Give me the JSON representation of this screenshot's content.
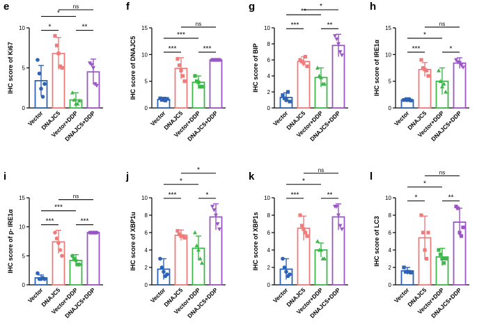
{
  "colors": {
    "Vector": "#2d62b4",
    "DNAJC5": "#f07b7b",
    "Vector+DDP": "#3cb84a",
    "DNAJC5+DDP": "#9a56c4"
  },
  "chart_data": [
    {
      "panel": "e",
      "type": "bar",
      "ylabel": "IHC score of Ki67",
      "ylim": [
        0,
        10
      ],
      "yticks": [
        0,
        5,
        10
      ],
      "categories": [
        "Vector",
        "DNAJC5",
        "Vector+DDP",
        "DNAJC5+DDP"
      ],
      "marker": [
        "circle",
        "square",
        "triangle-up",
        "triangle-down"
      ],
      "means": [
        3.4,
        6.8,
        1.0,
        4.5
      ],
      "sd": [
        1.9,
        2.0,
        0.9,
        1.6
      ],
      "points": [
        [
          6.0,
          4.3,
          2.4,
          1.4,
          3.0
        ],
        [
          9.0,
          7.8,
          6.8,
          5.2,
          5.0
        ],
        [
          1.9,
          1.0,
          0.5,
          0.5,
          0.9
        ],
        [
          5.6,
          5.4,
          5.0,
          3.0,
          2.8
        ]
      ],
      "comparisons": [
        {
          "a": 0,
          "b": 1,
          "label": "*"
        },
        {
          "a": 0,
          "b": 2,
          "label": "*"
        },
        {
          "a": 1,
          "b": 3,
          "label": "ns"
        },
        {
          "a": 2,
          "b": 3,
          "label": "**"
        }
      ]
    },
    {
      "panel": "f",
      "type": "bar",
      "ylabel": "IHC score of DNAJC5",
      "ylim": [
        0,
        15
      ],
      "yticks": [
        0,
        5,
        10,
        15
      ],
      "categories": [
        "Vector",
        "DNAJC5",
        "Vector+DDP",
        "DNAJC5+DDP"
      ],
      "marker": [
        "square",
        "square",
        "square",
        "square"
      ],
      "means": [
        1.6,
        7.4,
        4.8,
        9.0
      ],
      "sd": [
        0.4,
        2.0,
        1.2,
        0.2
      ],
      "points": [
        [
          1.8,
          1.5,
          1.6,
          1.4,
          1.7
        ],
        [
          9.2,
          8.0,
          7.0,
          6.0,
          5.0
        ],
        [
          6.0,
          5.0,
          4.8,
          4.0,
          4.0
        ],
        [
          9.0,
          9.0,
          9.0,
          9.0,
          9.0
        ]
      ],
      "comparisons": [
        {
          "a": 0,
          "b": 1,
          "label": "***"
        },
        {
          "a": 0,
          "b": 2,
          "label": "***"
        },
        {
          "a": 1,
          "b": 3,
          "label": "ns"
        },
        {
          "a": 2,
          "b": 3,
          "label": "***"
        }
      ]
    },
    {
      "panel": "g",
      "type": "bar",
      "ylabel": "IHC score of BIP",
      "ylim": [
        0,
        10
      ],
      "yticks": [
        0,
        2,
        4,
        6,
        8,
        10
      ],
      "categories": [
        "Vector",
        "DNAJC5",
        "Vector+DDP",
        "DNAJC5+DDP"
      ],
      "marker": [
        "square",
        "square",
        "triangle-up",
        "triangle-down"
      ],
      "means": [
        1.3,
        5.8,
        3.8,
        7.8
      ],
      "sd": [
        0.6,
        0.6,
        1.2,
        1.4
      ],
      "points": [
        [
          1.6,
          1.2,
          1.0,
          2.0,
          0.8
        ],
        [
          6.0,
          5.8,
          5.6,
          6.4,
          5.2
        ],
        [
          5.0,
          4.0,
          3.8,
          3.0,
          3.0
        ],
        [
          9.0,
          8.6,
          8.0,
          7.0,
          6.6
        ]
      ],
      "comparisons": [
        {
          "a": 0,
          "b": 1,
          "label": "***"
        },
        {
          "a": 0,
          "b": 2,
          "label": "**"
        },
        {
          "a": 1,
          "b": 3,
          "label": "*"
        },
        {
          "a": 2,
          "b": 3,
          "label": "**"
        }
      ]
    },
    {
      "panel": "h",
      "type": "bar",
      "ylabel": "IHC score of IRE1α",
      "ylim": [
        0,
        15
      ],
      "yticks": [
        0,
        5,
        10,
        15
      ],
      "categories": [
        "Vector",
        "DNAJC5",
        "Vector+DDP",
        "DNAJC5+DDP"
      ],
      "marker": [
        "square",
        "square",
        "triangle-up",
        "triangle-down"
      ],
      "means": [
        1.5,
        7.2,
        5.0,
        8.4
      ],
      "sd": [
        0.4,
        1.3,
        2.5,
        1.0
      ],
      "points": [
        [
          1.5,
          1.5,
          1.5,
          1.6,
          1.4
        ],
        [
          9.0,
          7.5,
          7.2,
          7.0,
          6.0
        ],
        [
          7.0,
          5.0,
          4.0,
          4.5,
          3.0
        ],
        [
          9.0,
          8.6,
          8.5,
          8.0,
          7.6
        ]
      ],
      "comparisons": [
        {
          "a": 0,
          "b": 1,
          "label": "***"
        },
        {
          "a": 0,
          "b": 2,
          "label": "*"
        },
        {
          "a": 1,
          "b": 3,
          "label": "ns"
        },
        {
          "a": 2,
          "b": 3,
          "label": "*"
        }
      ]
    },
    {
      "panel": "i",
      "type": "bar",
      "ylabel": "IHC score of p- IRE1α",
      "ylim": [
        0,
        15
      ],
      "yticks": [
        0,
        5,
        10,
        15
      ],
      "categories": [
        "Vector",
        "DNAJC5",
        "Vector+DDP",
        "DNAJC5+DDP"
      ],
      "marker": [
        "circle",
        "circle",
        "circle",
        "circle"
      ],
      "means": [
        1.2,
        7.4,
        4.2,
        9.0
      ],
      "sd": [
        0.5,
        2.0,
        1.0,
        0.1
      ],
      "points": [
        [
          2.0,
          1.0,
          1.0,
          1.2,
          1.0
        ],
        [
          9.0,
          8.0,
          7.2,
          6.0,
          5.0
        ],
        [
          5.0,
          4.5,
          4.2,
          3.5,
          3.5
        ],
        [
          9.0,
          9.0,
          9.0,
          9.0,
          9.0
        ]
      ],
      "comparisons": [
        {
          "a": 0,
          "b": 1,
          "label": "***"
        },
        {
          "a": 0,
          "b": 2,
          "label": "***"
        },
        {
          "a": 1,
          "b": 3,
          "label": "ns"
        },
        {
          "a": 2,
          "b": 3,
          "label": "***"
        }
      ]
    },
    {
      "panel": "j",
      "type": "bar",
      "ylabel": "IHC score of XBP1u",
      "ylim": [
        0,
        10
      ],
      "yticks": [
        0,
        2,
        4,
        6,
        8,
        10
      ],
      "categories": [
        "Vector",
        "DNAJC5",
        "Vector+DDP",
        "DNAJC5+DDP"
      ],
      "marker": [
        "circle",
        "square",
        "triangle-up",
        "triangle-down"
      ],
      "means": [
        1.8,
        5.7,
        4.2,
        7.8
      ],
      "sd": [
        1.2,
        0.6,
        1.4,
        1.5
      ],
      "points": [
        [
          3.0,
          2.0,
          1.5,
          1.0,
          1.2
        ],
        [
          6.2,
          5.8,
          5.6,
          5.6,
          5.4
        ],
        [
          6.0,
          4.5,
          4.0,
          3.0,
          2.5
        ],
        [
          9.0,
          8.6,
          8.0,
          7.0,
          6.4
        ]
      ],
      "comparisons": [
        {
          "a": 0,
          "b": 1,
          "label": "***"
        },
        {
          "a": 0,
          "b": 2,
          "label": "*"
        },
        {
          "a": 1,
          "b": 3,
          "label": "*"
        },
        {
          "a": 2,
          "b": 3,
          "label": "*"
        }
      ]
    },
    {
      "panel": "k",
      "type": "bar",
      "ylabel": "IHC score of XBP1s",
      "ylim": [
        0,
        10
      ],
      "yticks": [
        0,
        2,
        4,
        6,
        8,
        10
      ],
      "categories": [
        "Vector",
        "DNAJC5",
        "Vector+DDP",
        "DNAJC5+DDP"
      ],
      "marker": [
        "circle",
        "square",
        "triangle-up",
        "triangle-down"
      ],
      "means": [
        1.8,
        6.5,
        4.0,
        7.8
      ],
      "sd": [
        1.2,
        1.4,
        0.8,
        1.5
      ],
      "points": [
        [
          3.0,
          2.0,
          1.5,
          1.0,
          1.2
        ],
        [
          8.0,
          6.8,
          6.4,
          6.0,
          5.6
        ],
        [
          5.0,
          4.0,
          4.0,
          3.0,
          3.0
        ],
        [
          9.0,
          9.0,
          8.0,
          6.8,
          6.4
        ]
      ],
      "comparisons": [
        {
          "a": 0,
          "b": 1,
          "label": "***"
        },
        {
          "a": 0,
          "b": 2,
          "label": "*"
        },
        {
          "a": 1,
          "b": 3,
          "label": "ns"
        },
        {
          "a": 2,
          "b": 3,
          "label": "**"
        }
      ]
    },
    {
      "panel": "l",
      "type": "bar",
      "ylabel": "IHC score of LC3",
      "ylim": [
        0,
        10
      ],
      "yticks": [
        0,
        2,
        4,
        6,
        8,
        10
      ],
      "categories": [
        "Vector",
        "DNAJC5",
        "Vector+DDP",
        "DNAJC5+DDP"
      ],
      "marker": [
        "square",
        "square",
        "square",
        "square"
      ],
      "means": [
        1.6,
        5.4,
        3.2,
        7.2
      ],
      "sd": [
        0.4,
        2.5,
        1.0,
        1.6
      ],
      "points": [
        [
          2.0,
          1.5,
          1.5,
          1.5,
          1.4
        ],
        [
          8.0,
          6.0,
          4.0,
          3.0,
          6.0
        ],
        [
          4.0,
          3.5,
          3.0,
          2.5,
          3.0
        ],
        [
          9.0,
          8.8,
          6.0,
          5.6,
          6.6
        ]
      ],
      "comparisons": [
        {
          "a": 0,
          "b": 1,
          "label": "*"
        },
        {
          "a": 0,
          "b": 2,
          "label": "*"
        },
        {
          "a": 1,
          "b": 3,
          "label": "ns"
        },
        {
          "a": 2,
          "b": 3,
          "label": "**"
        }
      ]
    }
  ]
}
